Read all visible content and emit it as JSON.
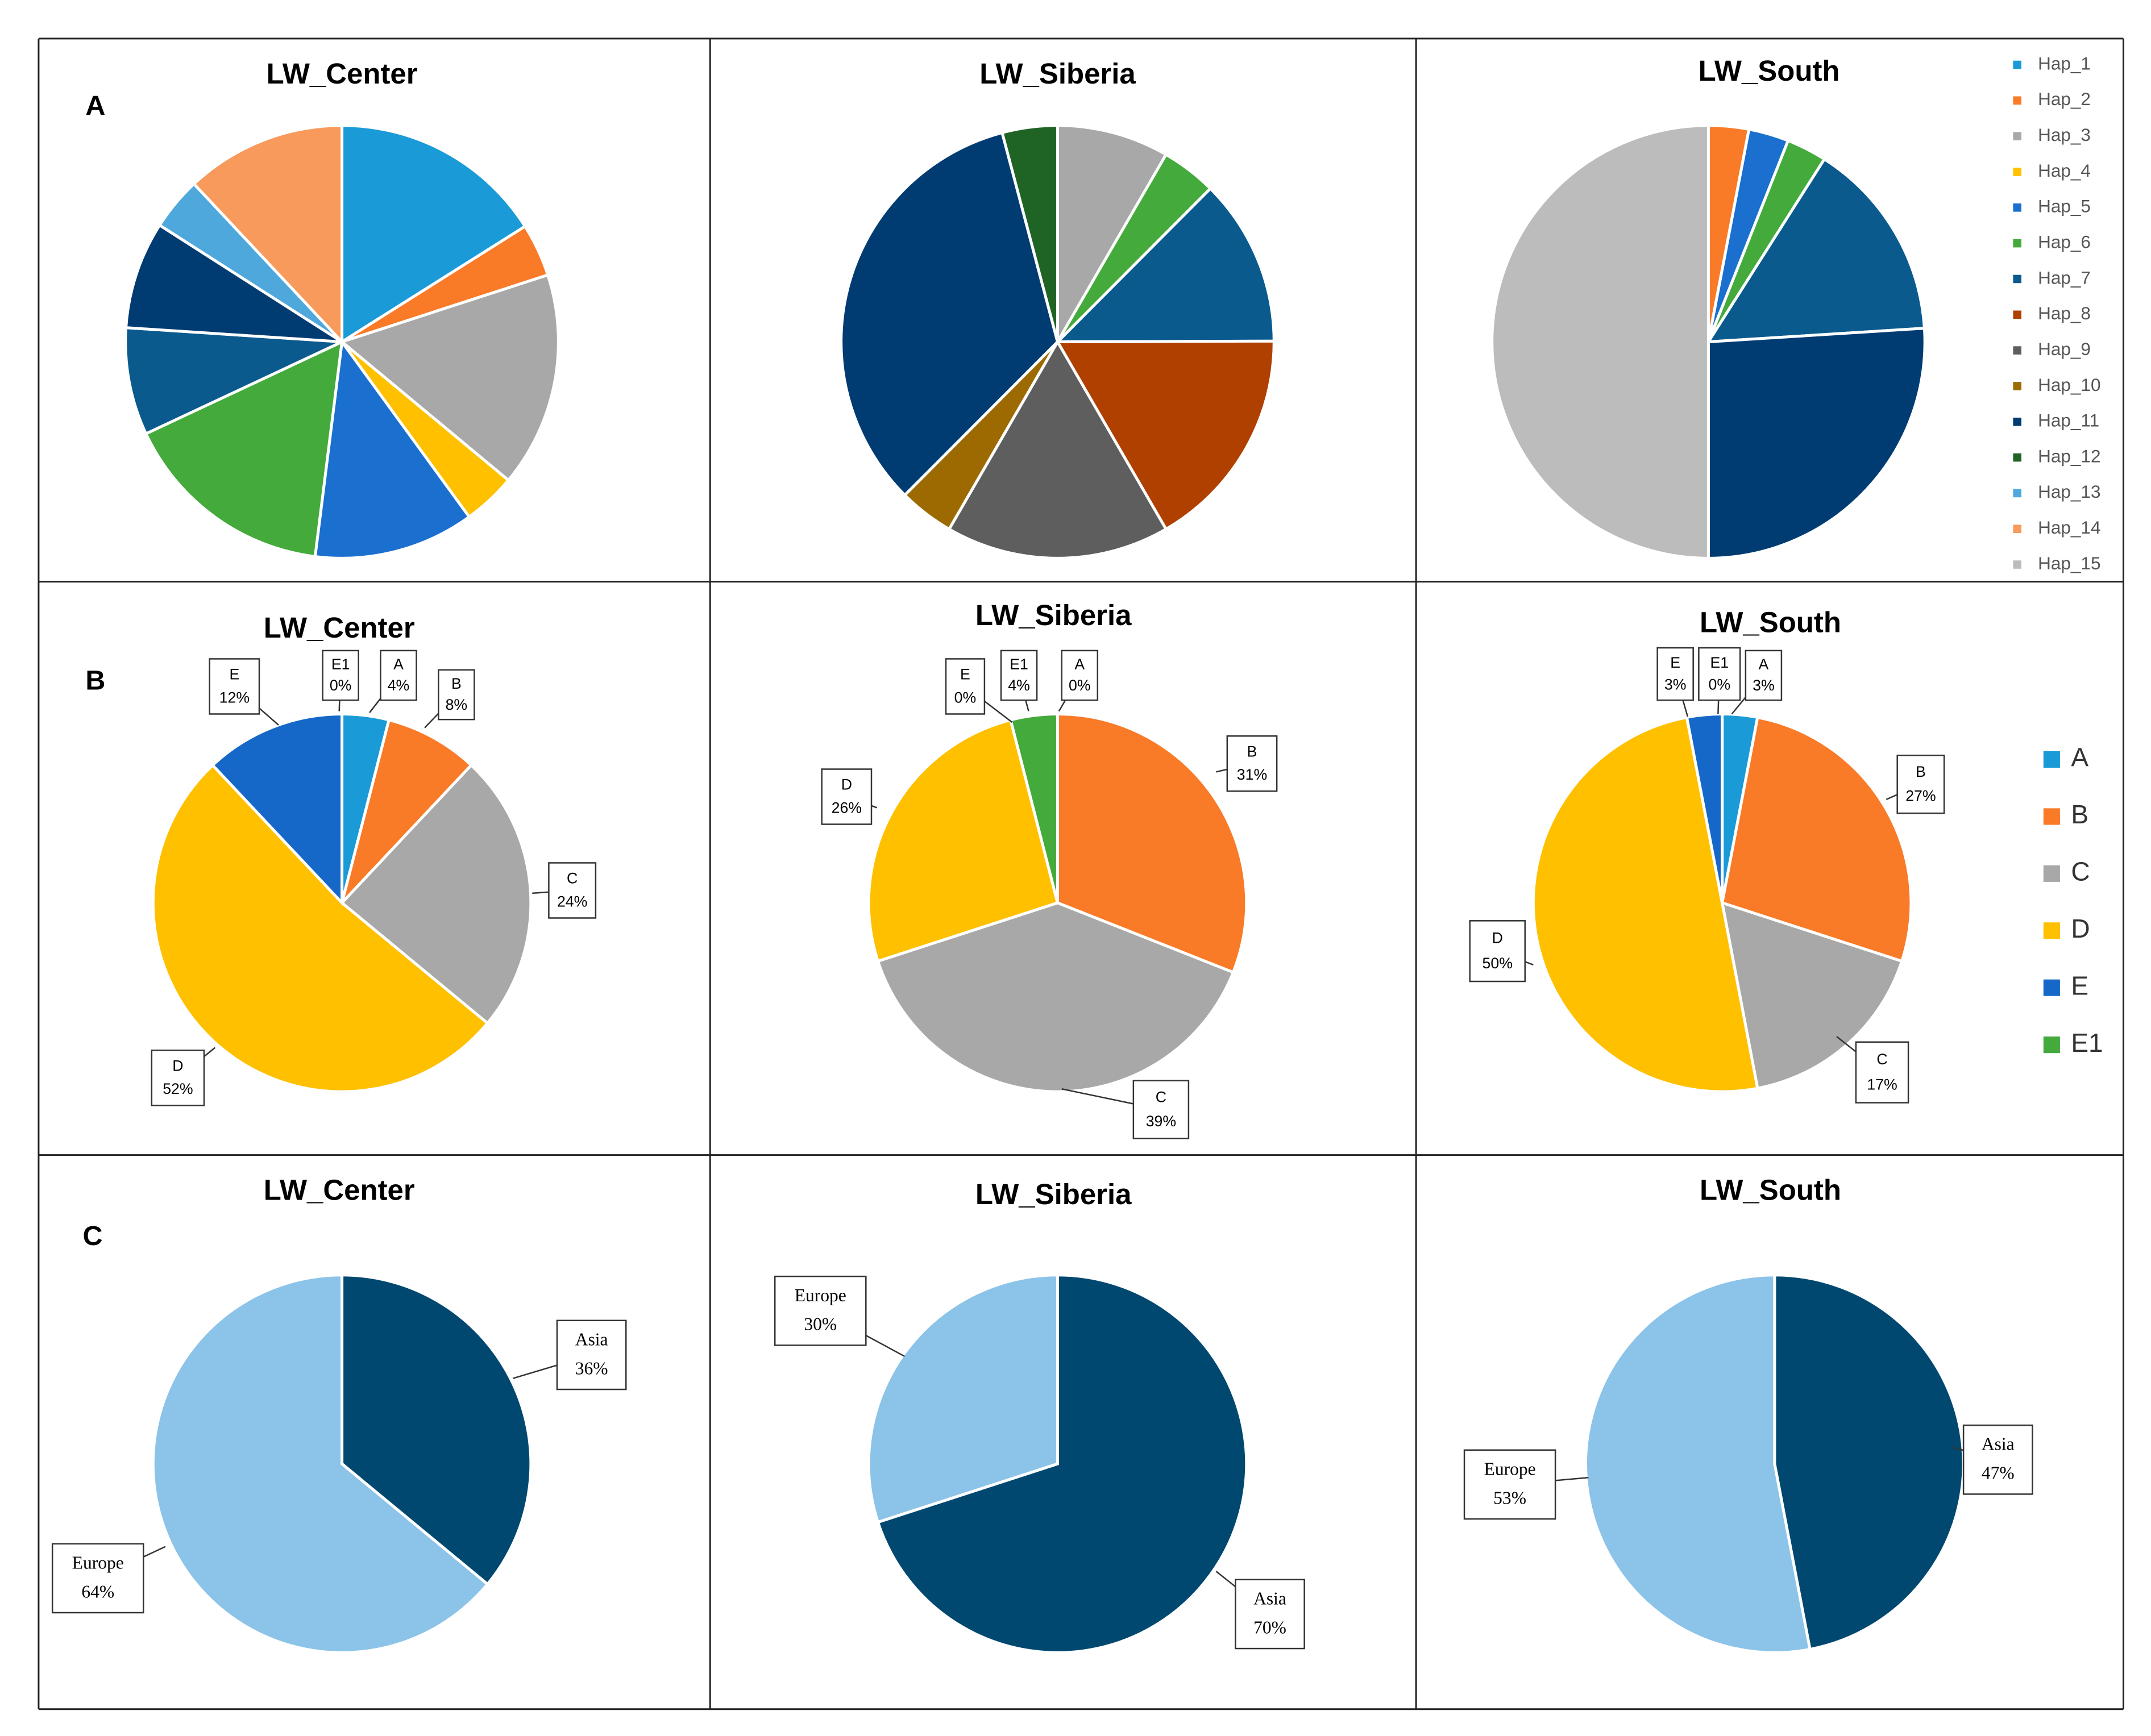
{
  "colors": {
    "hap": [
      "#1a9ad6",
      "#f97a27",
      "#a8a8a8",
      "#ffc000",
      "#1a6fcf",
      "#43aa3b",
      "#0a5a8e",
      "#b04000",
      "#5e5e5e",
      "#9c6a00",
      "#003c72",
      "#1f6325",
      "#4ea8dc",
      "#f79a5b",
      "#bcbcbc"
    ],
    "cluster": {
      "A": "#1a9ad6",
      "B": "#f97a27",
      "C": "#a8a8a8",
      "D": "#ffc000",
      "E": "#1668c8",
      "E1": "#43aa3b"
    },
    "region": {
      "Asia": "#004870",
      "Europe": "#8cc3e8"
    }
  },
  "chart_data": [
    {
      "type": "pie",
      "row": "A",
      "title": "LW_Center",
      "slices": [
        {
          "label": "Hap_1",
          "value": 15.4,
          "color_index": 0
        },
        {
          "label": "Hap_2",
          "value": 3.8,
          "color_index": 1
        },
        {
          "label": "Hap_3",
          "value": 15.4,
          "color_index": 2
        },
        {
          "label": "Hap_4",
          "value": 3.8,
          "color_index": 3
        },
        {
          "label": "Hap_5",
          "value": 11.5,
          "color_index": 4
        },
        {
          "label": "Hap_6",
          "value": 15.4,
          "color_index": 5
        },
        {
          "label": "Hap_7",
          "value": 7.7,
          "color_index": 6
        },
        {
          "label": "Hap_11",
          "value": 7.7,
          "color_index": 10
        },
        {
          "label": "Hap_13",
          "value": 3.8,
          "color_index": 12
        },
        {
          "label": "Hap_14",
          "value": 11.5,
          "color_index": 13
        }
      ]
    },
    {
      "type": "pie",
      "row": "A",
      "title": "LW_Siberia",
      "slices": [
        {
          "label": "Hap_3",
          "value": 7.7,
          "color_index": 2
        },
        {
          "label": "Hap_6",
          "value": 3.8,
          "color_index": 5
        },
        {
          "label": "Hap_7",
          "value": 11.5,
          "color_index": 6
        },
        {
          "label": "Hap_8",
          "value": 15.4,
          "color_index": 7
        },
        {
          "label": "Hap_9",
          "value": 15.4,
          "color_index": 8
        },
        {
          "label": "Hap_10",
          "value": 3.8,
          "color_index": 9
        },
        {
          "label": "Hap_11",
          "value": 30.8,
          "color_index": 10
        },
        {
          "label": "Hap_12",
          "value": 3.8,
          "color_index": 11
        }
      ]
    },
    {
      "type": "pie",
      "row": "A",
      "title": "LW_South",
      "slices": [
        {
          "label": "Hap_2",
          "value": 3,
          "color_index": 1
        },
        {
          "label": "Hap_5",
          "value": 3,
          "color_index": 4
        },
        {
          "label": "Hap_6",
          "value": 3,
          "color_index": 5
        },
        {
          "label": "Hap_7",
          "value": 15,
          "color_index": 6
        },
        {
          "label": "Hap_11",
          "value": 26,
          "color_index": 10
        },
        {
          "label": "Hap_15",
          "value": 50,
          "color_index": 14
        }
      ]
    },
    {
      "type": "pie",
      "row": "B",
      "title": "LW_Center",
      "slices": [
        {
          "label": "A",
          "value": 4,
          "text": "4%"
        },
        {
          "label": "B",
          "value": 8,
          "text": "8%"
        },
        {
          "label": "C",
          "value": 24,
          "text": "24%"
        },
        {
          "label": "D",
          "value": 52,
          "text": "52%"
        },
        {
          "label": "E",
          "value": 12,
          "text": "12%"
        },
        {
          "label": "E1",
          "value": 0,
          "text": "0%"
        }
      ]
    },
    {
      "type": "pie",
      "row": "B",
      "title": "LW_Siberia",
      "slices": [
        {
          "label": "A",
          "value": 0,
          "text": "0%"
        },
        {
          "label": "B",
          "value": 31,
          "text": "31%"
        },
        {
          "label": "C",
          "value": 39,
          "text": "39%"
        },
        {
          "label": "D",
          "value": 26,
          "text": "26%"
        },
        {
          "label": "E",
          "value": 0,
          "text": "0%"
        },
        {
          "label": "E1",
          "value": 4,
          "text": "4%"
        }
      ]
    },
    {
      "type": "pie",
      "row": "B",
      "title": "LW_South",
      "slices": [
        {
          "label": "A",
          "value": 3,
          "text": "3%"
        },
        {
          "label": "B",
          "value": 27,
          "text": "27%"
        },
        {
          "label": "C",
          "value": 17,
          "text": "17%"
        },
        {
          "label": "D",
          "value": 50,
          "text": "50%"
        },
        {
          "label": "E",
          "value": 3,
          "text": "3%"
        },
        {
          "label": "E1",
          "value": 0,
          "text": "0%"
        }
      ]
    },
    {
      "type": "pie",
      "row": "C",
      "title": "LW_Center",
      "slices": [
        {
          "label": "Asia",
          "value": 36,
          "text": "36%"
        },
        {
          "label": "Europe",
          "value": 64,
          "text": "64%"
        }
      ]
    },
    {
      "type": "pie",
      "row": "C",
      "title": "LW_Siberia",
      "slices": [
        {
          "label": "Asia",
          "value": 70,
          "text": "70%"
        },
        {
          "label": "Europe",
          "value": 30,
          "text": "30%"
        }
      ]
    },
    {
      "type": "pie",
      "row": "C",
      "title": "LW_South",
      "slices": [
        {
          "label": "Asia",
          "value": 47,
          "text": "47%"
        },
        {
          "label": "Europe",
          "value": 53,
          "text": "53%"
        }
      ]
    }
  ],
  "row_labels": [
    "A",
    "B",
    "C"
  ],
  "legend_hap": [
    "Hap_1",
    "Hap_2",
    "Hap_3",
    "Hap_4",
    "Hap_5",
    "Hap_6",
    "Hap_7",
    "Hap_8",
    "Hap_9",
    "Hap_10",
    "Hap_11",
    "Hap_12",
    "Hap_13",
    "Hap_14",
    "Hap_15"
  ],
  "legend_cluster": [
    "A",
    "B",
    "C",
    "D",
    "E",
    "E1"
  ]
}
